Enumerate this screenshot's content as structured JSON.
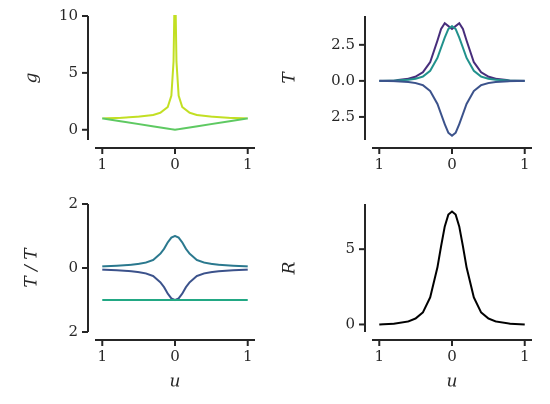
{
  "chart_data": [
    {
      "type": "line",
      "ylabel": "g",
      "x": [
        -1,
        -0.75,
        -0.5,
        -0.3,
        -0.2,
        -0.1,
        -0.05,
        -0.02,
        -0.01,
        0,
        0.01,
        0.02,
        0.05,
        0.1,
        0.2,
        0.3,
        0.5,
        0.75,
        1
      ],
      "series": [
        {
          "color": "#c2df23",
          "values": [
            1,
            1.05,
            1.15,
            1.3,
            1.5,
            2.0,
            3.0,
            6.0,
            10,
            10,
            10,
            6.0,
            3.0,
            2.0,
            1.5,
            1.3,
            1.15,
            1.05,
            1
          ]
        },
        {
          "color": "#5ec962",
          "values": [
            1,
            0.75,
            0.5,
            0.3,
            0.2,
            0.1,
            0.05,
            0.02,
            0.01,
            0,
            0.01,
            0.02,
            0.05,
            0.1,
            0.2,
            0.3,
            0.5,
            0.75,
            1
          ]
        }
      ],
      "xlim": [
        -1.1,
        1.1
      ],
      "ylim": [
        -0.9,
        10
      ],
      "xticks": [
        {
          "value": -1,
          "label": "1"
        },
        0,
        1
      ],
      "yticks": [
        0,
        5,
        10
      ]
    },
    {
      "type": "line",
      "ylabel": "T",
      "x": [
        -1,
        -0.8,
        -0.6,
        -0.5,
        -0.4,
        -0.3,
        -0.2,
        -0.15,
        -0.1,
        -0.05,
        0,
        0.05,
        0.1,
        0.15,
        0.2,
        0.3,
        0.4,
        0.5,
        0.6,
        0.8,
        1
      ],
      "series": [
        {
          "color": "#472d7b",
          "values": [
            0,
            0.03,
            0.15,
            0.3,
            0.6,
            1.3,
            2.8,
            3.6,
            4.0,
            3.8,
            3.6,
            3.8,
            4.0,
            3.6,
            2.8,
            1.3,
            0.6,
            0.3,
            0.15,
            0.03,
            0
          ]
        },
        {
          "color": "#21918c",
          "values": [
            0,
            0.02,
            0.08,
            0.15,
            0.3,
            0.7,
            1.6,
            2.3,
            3.0,
            3.6,
            3.8,
            3.6,
            3.0,
            2.3,
            1.6,
            0.7,
            0.3,
            0.15,
            0.08,
            0.02,
            0
          ]
        },
        {
          "color": "#3b528b",
          "values": [
            0,
            -0.02,
            -0.08,
            -0.15,
            -0.3,
            -0.7,
            -1.6,
            -2.3,
            -3.0,
            -3.6,
            -3.8,
            -3.6,
            -3.0,
            -2.3,
            -1.6,
            -0.7,
            -0.3,
            -0.15,
            -0.08,
            -0.02,
            0
          ]
        }
      ],
      "xlim": [
        -1.1,
        1.1
      ],
      "ylim": [
        -4.1,
        4.5
      ],
      "xticks": [
        {
          "value": -1,
          "label": "1"
        },
        0,
        1
      ],
      "yticks": [
        {
          "value": -2.5,
          "label": "2.5"
        },
        {
          "value": 0,
          "label": "0.0"
        },
        2.5
      ]
    },
    {
      "type": "line",
      "ylabel": "T / T",
      "xlabel": "u",
      "x": [
        -1,
        -0.8,
        -0.6,
        -0.5,
        -0.4,
        -0.3,
        -0.2,
        -0.15,
        -0.1,
        -0.05,
        0,
        0.05,
        0.1,
        0.15,
        0.2,
        0.3,
        0.4,
        0.5,
        0.6,
        0.8,
        1
      ],
      "series": [
        {
          "color": "#2a788e",
          "values": [
            0.05,
            0.07,
            0.1,
            0.13,
            0.17,
            0.25,
            0.45,
            0.6,
            0.8,
            0.95,
            1.0,
            0.95,
            0.8,
            0.6,
            0.45,
            0.25,
            0.17,
            0.13,
            0.1,
            0.07,
            0.05
          ]
        },
        {
          "color": "#3b528b",
          "values": [
            -0.05,
            -0.07,
            -0.1,
            -0.13,
            -0.17,
            -0.25,
            -0.45,
            -0.6,
            -0.8,
            -0.95,
            -1.0,
            -0.95,
            -0.8,
            -0.6,
            -0.45,
            -0.25,
            -0.17,
            -0.13,
            -0.1,
            -0.07,
            -0.05
          ]
        },
        {
          "color": "#22a884",
          "values": [
            -1,
            -1,
            -1,
            -1,
            -1,
            -1,
            -1,
            -1,
            -1,
            -1,
            -1,
            -1,
            -1,
            -1,
            -1,
            -1,
            -1,
            -1,
            -1,
            -1,
            -1
          ]
        }
      ],
      "xlim": [
        -1.1,
        1.1
      ],
      "ylim": [
        -2,
        2
      ],
      "xticks": [
        {
          "value": -1,
          "label": "1"
        },
        0,
        1
      ],
      "yticks": [
        {
          "value": -2,
          "label": "2"
        },
        0,
        2
      ]
    },
    {
      "type": "line",
      "ylabel": "R",
      "xlabel": "u",
      "x": [
        -1,
        -0.8,
        -0.6,
        -0.5,
        -0.4,
        -0.3,
        -0.2,
        -0.15,
        -0.1,
        -0.05,
        0,
        0.05,
        0.1,
        0.15,
        0.2,
        0.3,
        0.4,
        0.5,
        0.6,
        0.8,
        1
      ],
      "series": [
        {
          "color": "#000000",
          "values": [
            0,
            0.05,
            0.2,
            0.4,
            0.8,
            1.8,
            3.8,
            5.2,
            6.5,
            7.3,
            7.5,
            7.3,
            6.5,
            5.2,
            3.8,
            1.8,
            0.8,
            0.4,
            0.2,
            0.05,
            0
          ]
        }
      ],
      "xlim": [
        -1.1,
        1.1
      ],
      "ylim": [
        -0.5,
        8
      ],
      "xticks": [
        {
          "value": -1,
          "label": "1"
        },
        0,
        1
      ],
      "yticks": [
        0,
        5
      ]
    }
  ]
}
